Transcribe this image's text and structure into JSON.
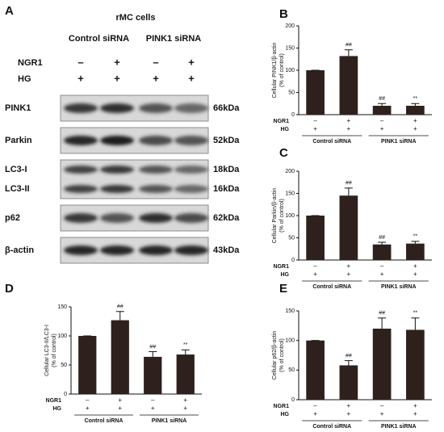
{
  "panel_letters": [
    "A",
    "B",
    "C",
    "D",
    "E"
  ],
  "blot": {
    "title": "rMC cells",
    "groups": [
      "Control siRNA",
      "PINK1 siRNA"
    ],
    "conditions": [
      {
        "name": "NGR1",
        "marks": [
          "–",
          "+",
          "–",
          "+"
        ]
      },
      {
        "name": "HG",
        "marks": [
          "+",
          "+",
          "+",
          "+"
        ]
      }
    ],
    "bands": [
      {
        "labels": [
          "PINK1"
        ],
        "sizes": [
          "66kDa"
        ]
      },
      {
        "labels": [
          "Parkin"
        ],
        "sizes": [
          "52kDa"
        ]
      },
      {
        "labels": [
          "LC3-I",
          "LC3-II"
        ],
        "sizes": [
          "18kDa",
          "16kDa"
        ]
      },
      {
        "labels": [
          "p62"
        ],
        "sizes": [
          "62kDa"
        ]
      },
      {
        "labels": [
          "β-actin"
        ],
        "sizes": [
          "43kDa"
        ]
      }
    ]
  },
  "chart_data": [
    {
      "type": "bar",
      "ylabel": [
        "Cellular PINK1/β-actin",
        "(% of control)"
      ],
      "values": [
        100,
        132,
        20,
        20
      ],
      "errors": [
        0,
        14,
        5,
        5
      ],
      "annotations": [
        null,
        "##",
        "##",
        "**"
      ],
      "color": "#2e211d",
      "ylim": [
        0,
        200
      ],
      "yticks": [
        0,
        50,
        100,
        150,
        200
      ],
      "conditions": [
        {
          "name": "NGR1",
          "marks": [
            "–",
            "+",
            "–",
            "+"
          ]
        },
        {
          "name": "HG",
          "marks": [
            "+",
            "+",
            "+",
            "+"
          ]
        }
      ],
      "groups": [
        "Control siRNA",
        "PINK1 siRNA"
      ]
    },
    {
      "type": "bar",
      "ylabel": [
        "Cellular Parkin/β-actin",
        "(% of control)"
      ],
      "values": [
        100,
        145,
        35,
        37
      ],
      "errors": [
        0,
        17,
        5,
        5
      ],
      "annotations": [
        null,
        "##",
        "##",
        "**"
      ],
      "color": "#2e211d",
      "ylim": [
        0,
        200
      ],
      "yticks": [
        0,
        50,
        100,
        150,
        200
      ],
      "conditions": [
        {
          "name": "NGR1",
          "marks": [
            "–",
            "+",
            "–",
            "+"
          ]
        },
        {
          "name": "HG",
          "marks": [
            "+",
            "+",
            "+",
            "+"
          ]
        }
      ],
      "groups": [
        "Control siRNA",
        "PINK1 siRNA"
      ]
    },
    {
      "type": "bar",
      "ylabel": [
        "Cellular LC3-II/LC3-I",
        "(% of control)"
      ],
      "values": [
        100,
        127,
        64,
        68
      ],
      "errors": [
        0,
        15,
        9,
        8
      ],
      "annotations": [
        null,
        "##",
        "##",
        "**"
      ],
      "color": "#2e211d",
      "ylim": [
        0,
        150
      ],
      "yticks": [
        0,
        50,
        100,
        150
      ],
      "conditions": [
        {
          "name": "NGR1",
          "marks": [
            "–",
            "+",
            "–",
            "+"
          ]
        },
        {
          "name": "HG",
          "marks": [
            "+",
            "+",
            "+",
            "+"
          ]
        }
      ],
      "groups": [
        "Control siRNA",
        "PINK1 siRNA"
      ]
    },
    {
      "type": "bar",
      "ylabel": [
        "Cellular p62/β-actin",
        "(% of control)"
      ],
      "values": [
        100,
        58,
        120,
        118
      ],
      "errors": [
        0,
        8,
        18,
        20
      ],
      "annotations": [
        null,
        "##",
        "##",
        "**"
      ],
      "color": "#2e211d",
      "ylim": [
        0,
        150
      ],
      "yticks": [
        0,
        50,
        100,
        150
      ],
      "conditions": [
        {
          "name": "NGR1",
          "marks": [
            "–",
            "+",
            "–",
            "+"
          ]
        },
        {
          "name": "HG",
          "marks": [
            "+",
            "+",
            "+",
            "+"
          ]
        }
      ],
      "groups": [
        "Control siRNA",
        "PINK1 siRNA"
      ]
    }
  ]
}
